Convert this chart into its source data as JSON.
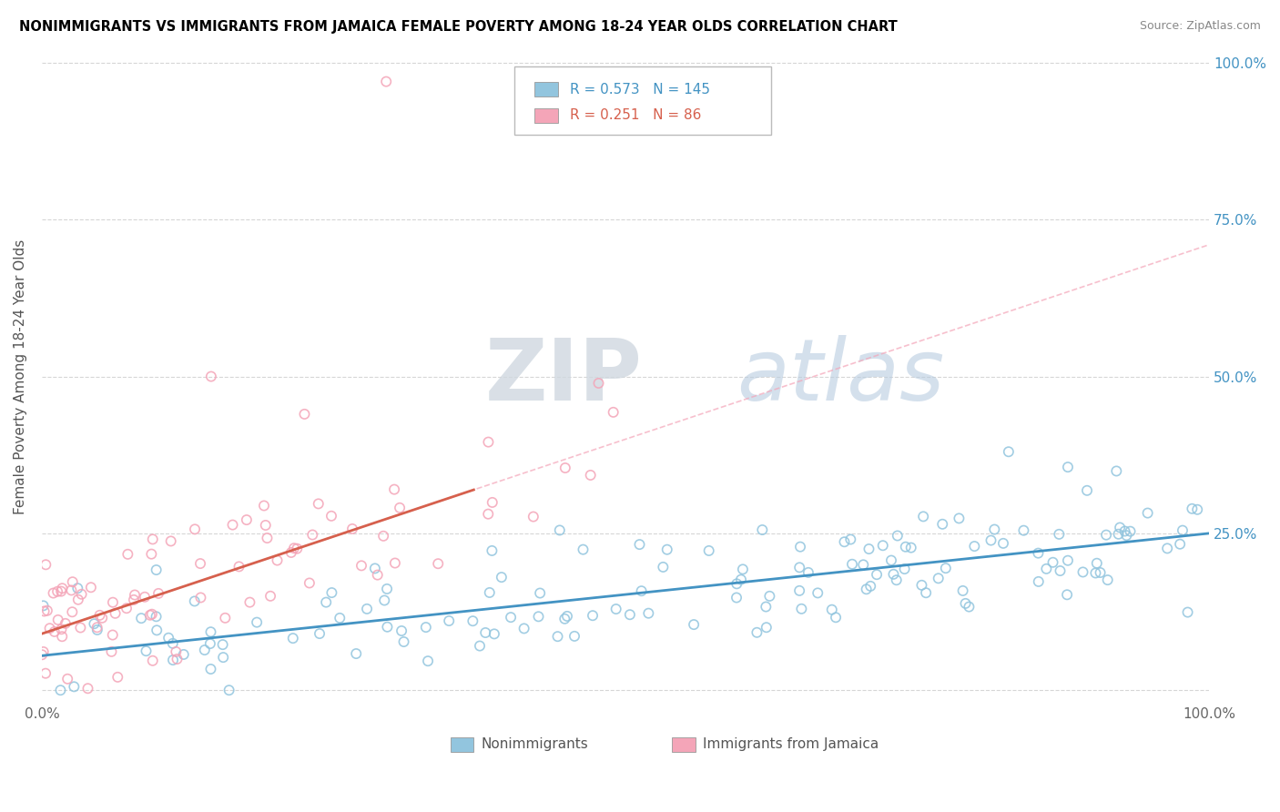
{
  "title": "NONIMMIGRANTS VS IMMIGRANTS FROM JAMAICA FEMALE POVERTY AMONG 18-24 YEAR OLDS CORRELATION CHART",
  "source": "Source: ZipAtlas.com",
  "ylabel": "Female Poverty Among 18-24 Year Olds",
  "blue_R": 0.573,
  "blue_N": 145,
  "pink_R": 0.251,
  "pink_N": 86,
  "blue_color": "#92c5de",
  "pink_color": "#f4a5b8",
  "blue_line_color": "#4393c3",
  "pink_line_color": "#d6604d",
  "pink_dash_color": "#f4a5b8",
  "xlim": [
    0,
    1
  ],
  "ylim": [
    -0.02,
    1.02
  ],
  "ytick_positions": [
    0.0,
    0.25,
    0.5,
    0.75,
    1.0
  ],
  "right_ytick_labels": [
    "100.0%",
    "75.0%",
    "50.0%",
    "25.0%"
  ],
  "right_ytick_positions": [
    1.0,
    0.75,
    0.5,
    0.25
  ],
  "watermark_zip": "ZIP",
  "watermark_atlas": "atlas",
  "legend_blue_label": "Nonimmigrants",
  "legend_pink_label": "Immigrants from Jamaica",
  "blue_intercept": 0.055,
  "blue_slope": 0.195,
  "pink_intercept": 0.09,
  "pink_slope": 0.62
}
